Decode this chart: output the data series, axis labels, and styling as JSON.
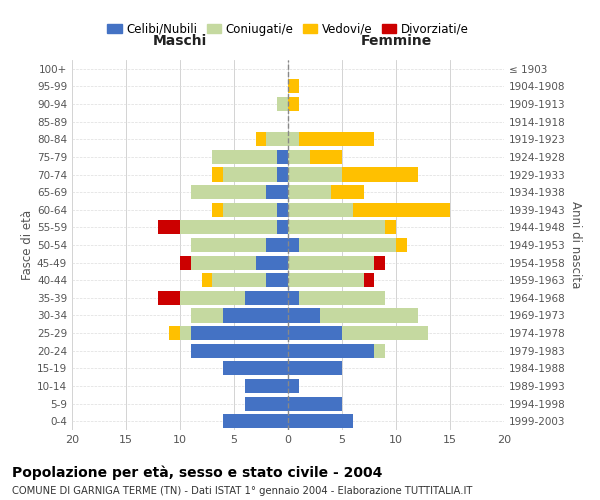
{
  "age_groups": [
    "0-4",
    "5-9",
    "10-14",
    "15-19",
    "20-24",
    "25-29",
    "30-34",
    "35-39",
    "40-44",
    "45-49",
    "50-54",
    "55-59",
    "60-64",
    "65-69",
    "70-74",
    "75-79",
    "80-84",
    "85-89",
    "90-94",
    "95-99",
    "100+"
  ],
  "birth_years": [
    "1999-2003",
    "1994-1998",
    "1989-1993",
    "1984-1988",
    "1979-1983",
    "1974-1978",
    "1969-1973",
    "1964-1968",
    "1959-1963",
    "1954-1958",
    "1949-1953",
    "1944-1948",
    "1939-1943",
    "1934-1938",
    "1929-1933",
    "1924-1928",
    "1919-1923",
    "1914-1918",
    "1909-1913",
    "1904-1908",
    "≤ 1903"
  ],
  "male": {
    "celibi": [
      6,
      4,
      4,
      6,
      9,
      9,
      6,
      4,
      2,
      3,
      2,
      1,
      1,
      2,
      1,
      1,
      0,
      0,
      0,
      0,
      0
    ],
    "coniugati": [
      0,
      0,
      0,
      0,
      0,
      1,
      3,
      6,
      5,
      6,
      7,
      9,
      5,
      7,
      5,
      6,
      2,
      0,
      1,
      0,
      0
    ],
    "vedovi": [
      0,
      0,
      0,
      0,
      0,
      1,
      0,
      0,
      1,
      0,
      0,
      0,
      1,
      0,
      1,
      0,
      1,
      0,
      0,
      0,
      0
    ],
    "divorziati": [
      0,
      0,
      0,
      0,
      0,
      0,
      0,
      2,
      0,
      1,
      0,
      2,
      0,
      0,
      0,
      0,
      0,
      0,
      0,
      0,
      0
    ]
  },
  "female": {
    "nubili": [
      6,
      5,
      1,
      5,
      8,
      5,
      3,
      1,
      0,
      0,
      1,
      0,
      0,
      0,
      0,
      0,
      0,
      0,
      0,
      0,
      0
    ],
    "coniugate": [
      0,
      0,
      0,
      0,
      1,
      8,
      9,
      8,
      7,
      8,
      9,
      9,
      6,
      4,
      5,
      2,
      1,
      0,
      0,
      0,
      0
    ],
    "vedove": [
      0,
      0,
      0,
      0,
      0,
      0,
      0,
      0,
      0,
      0,
      1,
      1,
      9,
      3,
      7,
      3,
      7,
      0,
      1,
      1,
      0
    ],
    "divorziate": [
      0,
      0,
      0,
      0,
      0,
      0,
      0,
      0,
      1,
      1,
      0,
      0,
      0,
      0,
      0,
      0,
      0,
      0,
      0,
      0,
      0
    ]
  },
  "colors": {
    "celibi_nubili": "#4472c4",
    "coniugati": "#c5d9a0",
    "vedovi": "#ffc000",
    "divorziati": "#cc0000"
  },
  "title": "Popolazione per età, sesso e stato civile - 2004",
  "subtitle": "COMUNE DI GARNIGA TERME (TN) - Dati ISTAT 1° gennaio 2004 - Elaborazione TUTTITALIA.IT",
  "xlabel_left": "Maschi",
  "xlabel_right": "Femmine",
  "ylabel_left": "Fasce di età",
  "ylabel_right": "Anni di nascita",
  "xlim": 20,
  "legend_labels": [
    "Celibi/Nubili",
    "Coniugati/e",
    "Vedovi/e",
    "Divorziati/e"
  ],
  "background_color": "#ffffff"
}
